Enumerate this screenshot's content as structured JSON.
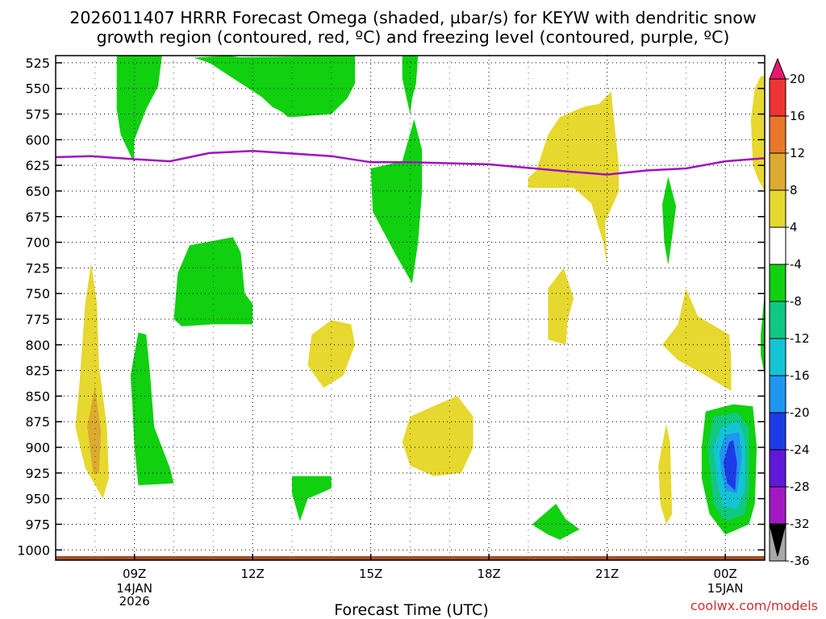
{
  "title_line1": "2026011407 HRRR Forecast Omega (shaded, µbar/s) for KEYW with dendritic snow",
  "title_line2": "growth region (contoured, red, ºC) and freezing level (contoured, purple, ºC)",
  "credit": "coolwx.com/models",
  "chart_data": {
    "type": "heatmap",
    "title": "2026011407 HRRR Forecast Omega (shaded, µbar/s) for KEYW with dendritic snow growth region (contoured, red, ºC) and freezing level (contoured, purple, ºC)",
    "xlabel": "Forecast Time (UTC)",
    "ylabel": "",
    "x_range_hours": [
      7,
      25
    ],
    "y_range_hpa": [
      1010,
      518
    ],
    "y_ticks": [
      525,
      550,
      575,
      600,
      625,
      650,
      675,
      700,
      725,
      750,
      775,
      800,
      825,
      850,
      875,
      900,
      925,
      950,
      975,
      1000
    ],
    "x_ticks": [
      {
        "hour": 9,
        "label": "09Z",
        "sub": [
          "14JAN",
          "2026"
        ]
      },
      {
        "hour": 12,
        "label": "12Z",
        "sub": []
      },
      {
        "hour": 15,
        "label": "15Z",
        "sub": []
      },
      {
        "hour": 18,
        "label": "18Z",
        "sub": []
      },
      {
        "hour": 21,
        "label": "21Z",
        "sub": []
      },
      {
        "hour": 24,
        "label": "00Z",
        "sub": [
          "15JAN"
        ]
      }
    ],
    "colorbar": {
      "labels": [
        "20",
        "16",
        "12",
        "8",
        "4",
        "-4",
        "-8",
        "-12",
        "-16",
        "-20",
        "-24",
        "-28",
        "-32",
        "-36"
      ],
      "bins": [
        {
          "from": 20,
          "to": 24,
          "color": "#e8186e"
        },
        {
          "from": 16,
          "to": 20,
          "color": "#ee3434"
        },
        {
          "from": 12,
          "to": 16,
          "color": "#e8772a"
        },
        {
          "from": 8,
          "to": 12,
          "color": "#dcaa30"
        },
        {
          "from": 4,
          "to": 8,
          "color": "#e6d82e"
        },
        {
          "from": -4,
          "to": 4,
          "color": "#ffffff"
        },
        {
          "from": -8,
          "to": -4,
          "color": "#10d010"
        },
        {
          "from": -12,
          "to": -8,
          "color": "#10c882"
        },
        {
          "from": -16,
          "to": -12,
          "color": "#14c4d4"
        },
        {
          "from": -20,
          "to": -16,
          "color": "#2096ee"
        },
        {
          "from": -24,
          "to": -20,
          "color": "#1e3ce6"
        },
        {
          "from": -28,
          "to": -24,
          "color": "#6018d8"
        },
        {
          "from": -32,
          "to": -28,
          "color": "#a418c4"
        },
        {
          "from": -36,
          "to": -32,
          "color": "#a8a8a8"
        },
        {
          "from": -40,
          "to": -36,
          "color": "#000000"
        }
      ]
    },
    "freezing_level": {
      "color": "#a010c0",
      "points": [
        [
          7.0,
          617
        ],
        [
          7.9,
          616
        ],
        [
          9.0,
          619
        ],
        [
          9.9,
          621
        ],
        [
          10.9,
          613
        ],
        [
          12.0,
          611
        ],
        [
          14.0,
          616
        ],
        [
          15.0,
          622
        ],
        [
          16.0,
          622
        ],
        [
          18.0,
          624
        ],
        [
          20.0,
          631
        ],
        [
          21.0,
          634
        ],
        [
          22.0,
          630
        ],
        [
          23.0,
          628
        ],
        [
          24.0,
          621
        ],
        [
          25.0,
          618
        ]
      ]
    },
    "surface": {
      "color": "#a0522d",
      "pressure_hpa": 1006
    },
    "omega_regions": [
      {
        "value": -6,
        "points": [
          [
            8.55,
            518
          ],
          [
            9.7,
            518
          ],
          [
            9.6,
            548
          ],
          [
            9.3,
            570
          ],
          [
            9.0,
            600
          ],
          [
            8.98,
            622
          ],
          [
            8.65,
            595
          ],
          [
            8.55,
            570
          ]
        ]
      },
      {
        "value": -6,
        "points": [
          [
            9.7,
            518
          ],
          [
            10.5,
            520
          ],
          [
            10.9,
            525
          ],
          [
            10.5,
            520
          ],
          [
            11.4,
            518
          ],
          [
            12.5,
            525
          ],
          [
            13.5,
            533
          ],
          [
            14.4,
            540
          ],
          [
            14.2,
            560
          ],
          [
            13.8,
            575
          ],
          [
            12.9,
            578
          ],
          [
            12.5,
            565
          ],
          [
            11.5,
            540
          ],
          [
            10.9,
            525
          ],
          [
            10.5,
            520
          ]
        ]
      },
      {
        "value": -6,
        "points": [
          [
            14.4,
            518
          ],
          [
            14.1,
            518
          ],
          [
            14.6,
            518
          ],
          [
            14.6,
            545
          ],
          [
            14.4,
            560
          ],
          [
            14.0,
            575
          ],
          [
            13.0,
            578
          ],
          [
            12.5,
            568
          ],
          [
            12.0,
            550
          ],
          [
            11.5,
            532
          ],
          [
            11.0,
            520
          ]
        ]
      },
      {
        "value": -6,
        "points": [
          [
            15.8,
            518
          ],
          [
            16.2,
            518
          ],
          [
            16.15,
            545
          ],
          [
            16.05,
            560
          ],
          [
            16.0,
            575
          ],
          [
            15.9,
            558
          ],
          [
            15.8,
            540
          ]
        ]
      },
      {
        "value": -6,
        "points": [
          [
            15.0,
            628
          ],
          [
            15.8,
            621
          ],
          [
            16.1,
            580
          ],
          [
            16.3,
            610
          ],
          [
            16.3,
            650
          ],
          [
            16.2,
            700
          ],
          [
            16.05,
            740
          ],
          [
            15.6,
            710
          ],
          [
            15.05,
            670
          ]
        ]
      },
      {
        "value": -6,
        "points": [
          [
            10.0,
            775
          ],
          [
            10.1,
            730
          ],
          [
            10.4,
            703
          ],
          [
            11.5,
            695
          ],
          [
            11.7,
            710
          ],
          [
            11.8,
            750
          ],
          [
            12.0,
            760
          ],
          [
            12.0,
            780
          ],
          [
            11.0,
            780
          ],
          [
            10.2,
            782
          ]
        ]
      },
      {
        "value": -6,
        "points": [
          [
            8.9,
            830
          ],
          [
            9.1,
            788
          ],
          [
            9.3,
            790
          ],
          [
            9.4,
            830
          ],
          [
            9.5,
            880
          ],
          [
            9.9,
            920
          ],
          [
            10.0,
            935
          ],
          [
            9.1,
            937
          ],
          [
            9.0,
            900
          ],
          [
            8.95,
            860
          ]
        ]
      },
      {
        "value": -6,
        "points": [
          [
            13.0,
            945
          ],
          [
            13.0,
            928
          ],
          [
            14.0,
            928
          ],
          [
            14.0,
            940
          ],
          [
            13.4,
            950
          ],
          [
            13.2,
            972
          ]
        ]
      },
      {
        "value": -6,
        "points": [
          [
            19.1,
            975
          ],
          [
            19.7,
            955
          ],
          [
            19.95,
            970
          ],
          [
            20.3,
            980
          ],
          [
            19.8,
            990
          ],
          [
            19.5,
            985
          ],
          [
            19.2,
            978
          ]
        ]
      },
      {
        "value": -6,
        "points": [
          [
            22.4,
            663
          ],
          [
            22.55,
            636
          ],
          [
            22.75,
            665
          ],
          [
            22.65,
            695
          ],
          [
            22.55,
            722
          ],
          [
            22.45,
            700
          ]
        ]
      },
      {
        "value": -6,
        "points": [
          [
            24.9,
            790
          ],
          [
            25.0,
            748
          ],
          [
            25.0,
            830
          ],
          [
            24.9,
            810
          ]
        ]
      },
      {
        "value": -6,
        "points": [
          [
            23.4,
            900
          ],
          [
            23.5,
            865
          ],
          [
            24.2,
            858
          ],
          [
            24.7,
            860
          ],
          [
            24.8,
            900
          ],
          [
            24.75,
            955
          ],
          [
            24.6,
            975
          ],
          [
            24.0,
            985
          ],
          [
            23.6,
            965
          ],
          [
            23.4,
            930
          ]
        ]
      },
      {
        "value": -10,
        "points": [
          [
            23.55,
            900
          ],
          [
            23.7,
            870
          ],
          [
            24.3,
            866
          ],
          [
            24.6,
            880
          ],
          [
            24.6,
            940
          ],
          [
            24.5,
            965
          ],
          [
            24.0,
            972
          ],
          [
            23.7,
            955
          ]
        ]
      },
      {
        "value": -14,
        "points": [
          [
            23.7,
            900
          ],
          [
            23.9,
            880
          ],
          [
            24.35,
            875
          ],
          [
            24.5,
            895
          ],
          [
            24.5,
            940
          ],
          [
            24.3,
            960
          ],
          [
            23.95,
            958
          ],
          [
            23.8,
            935
          ]
        ]
      },
      {
        "value": -18,
        "points": [
          [
            23.85,
            905
          ],
          [
            24.0,
            888
          ],
          [
            24.35,
            885
          ],
          [
            24.42,
            910
          ],
          [
            24.3,
            945
          ],
          [
            24.0,
            942
          ],
          [
            23.9,
            925
          ]
        ]
      },
      {
        "value": -22,
        "points": [
          [
            23.95,
            915
          ],
          [
            24.1,
            895
          ],
          [
            24.2,
            893
          ],
          [
            24.3,
            915
          ],
          [
            24.25,
            942
          ],
          [
            24.05,
            935
          ]
        ]
      },
      {
        "value": 6,
        "points": [
          [
            7.75,
            760
          ],
          [
            7.9,
            720
          ],
          [
            8.05,
            760
          ],
          [
            8.1,
            820
          ],
          [
            8.3,
            880
          ],
          [
            8.35,
            930
          ],
          [
            8.2,
            950
          ],
          [
            7.75,
            920
          ],
          [
            7.5,
            880
          ],
          [
            7.6,
            840
          ]
        ]
      },
      {
        "value": 10,
        "points": [
          [
            7.8,
            880
          ],
          [
            8.0,
            840
          ],
          [
            8.15,
            885
          ],
          [
            8.1,
            925
          ],
          [
            7.95,
            925
          ]
        ]
      },
      {
        "value": 6,
        "points": [
          [
            14.6,
            800
          ],
          [
            14.5,
            780
          ],
          [
            14.0,
            776
          ],
          [
            13.5,
            790
          ],
          [
            13.4,
            820
          ],
          [
            13.8,
            842
          ],
          [
            14.3,
            830
          ]
        ]
      },
      {
        "value": 6,
        "points": [
          [
            15.8,
            895
          ],
          [
            16.0,
            870
          ],
          [
            16.7,
            858
          ],
          [
            17.2,
            850
          ],
          [
            17.6,
            870
          ],
          [
            17.6,
            900
          ],
          [
            17.3,
            925
          ],
          [
            16.6,
            928
          ],
          [
            16.0,
            918
          ]
        ]
      },
      {
        "value": 6,
        "points": [
          [
            19.5,
            795
          ],
          [
            19.5,
            745
          ],
          [
            19.9,
            725
          ],
          [
            20.15,
            755
          ],
          [
            20.0,
            775
          ],
          [
            19.95,
            800
          ]
        ]
      },
      {
        "value": 6,
        "points": [
          [
            19.0,
            637
          ],
          [
            19.0,
            647
          ],
          [
            20.15,
            647
          ],
          [
            20.6,
            662
          ],
          [
            20.9,
            700
          ],
          [
            21.0,
            722
          ],
          [
            20.95,
            680
          ],
          [
            21.3,
            650
          ],
          [
            21.3,
            627
          ],
          [
            21.2,
            590
          ],
          [
            21.1,
            553
          ],
          [
            20.8,
            565
          ],
          [
            20.4,
            568
          ],
          [
            19.8,
            578
          ],
          [
            19.5,
            595
          ],
          [
            19.2,
            630
          ]
        ]
      },
      {
        "value": 6,
        "points": [
          [
            22.3,
            918
          ],
          [
            22.5,
            877
          ],
          [
            22.6,
            895
          ],
          [
            22.65,
            965
          ],
          [
            22.5,
            975
          ],
          [
            22.35,
            955
          ]
        ]
      },
      {
        "value": 6,
        "points": [
          [
            22.4,
            800
          ],
          [
            22.8,
            780
          ],
          [
            23.0,
            745
          ],
          [
            23.3,
            772
          ],
          [
            24.1,
            790
          ],
          [
            24.15,
            815
          ],
          [
            24.15,
            845
          ],
          [
            23.5,
            830
          ],
          [
            22.8,
            815
          ]
        ]
      },
      {
        "value": 6,
        "points": [
          [
            24.65,
            580
          ],
          [
            24.75,
            550
          ],
          [
            24.9,
            538
          ],
          [
            25.0,
            538
          ],
          [
            25.0,
            650
          ],
          [
            24.85,
            640
          ],
          [
            24.7,
            625
          ]
        ]
      }
    ]
  }
}
